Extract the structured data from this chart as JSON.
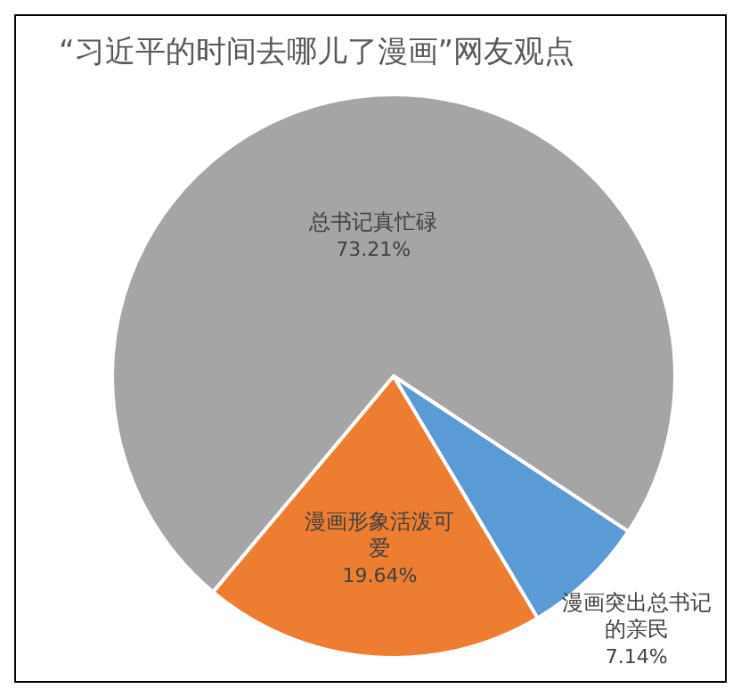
{
  "chart_data": {
    "type": "pie",
    "title": "“习近平的时间去哪儿了漫画”网友观点",
    "categories": [
      "总书记真忙碌",
      "漫画形象活泼可爱",
      "漫画突出总书记的亲民"
    ],
    "values": [
      73.21,
      19.64,
      7.14
    ],
    "colors": [
      "#a5a5a5",
      "#ed7d31",
      "#5b9bd5"
    ],
    "value_labels": [
      "73.21%",
      "19.64%",
      "7.14%"
    ]
  }
}
